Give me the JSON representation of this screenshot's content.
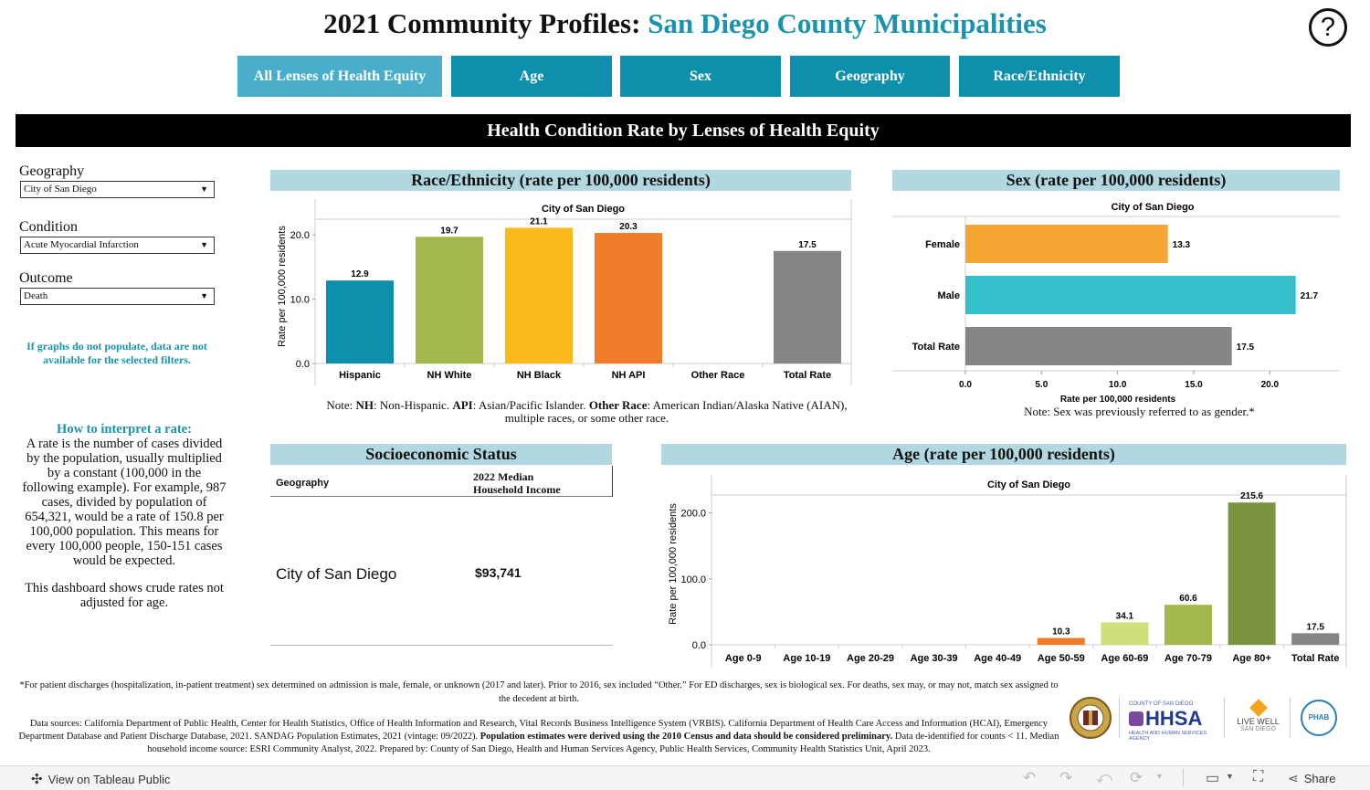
{
  "header": {
    "title_prefix": "2021 Community Profiles:",
    "title_accent": "San Diego County Municipalities",
    "help_label": "?"
  },
  "tabs": [
    {
      "label": "All Lenses of Health Equity",
      "active": true
    },
    {
      "label": "Age",
      "active": false
    },
    {
      "label": "Sex",
      "active": false
    },
    {
      "label": "Geography",
      "active": false
    },
    {
      "label": "Race/Ethnicity",
      "active": false
    }
  ],
  "banner": "Health Condition Rate by Lenses of Health Equity",
  "filters": {
    "geography": {
      "label": "Geography",
      "value": "City of San Diego"
    },
    "condition": {
      "label": "Condition",
      "value": "Acute Myocardial Infarction"
    },
    "outcome": {
      "label": "Outcome",
      "value": "Death"
    },
    "warning": "If graphs do not populate, data are not available for the selected filters."
  },
  "interpret": {
    "heading": "How to interpret a rate:",
    "body": "A rate is the number of cases divided by the population, usually multiplied by a constant (100,000 in the following example). For example, 987 cases, divided by population of 654,321, would be a rate of 150.8 per 100,000 population. This means for every 100,000 people, 150-151 cases would be expected.",
    "crude": "This dashboard shows crude rates not adjusted for age."
  },
  "race_panel": {
    "title": "Race/Ethnicity (rate per 100,000 residents)",
    "note_parts": {
      "p1": "Note: ",
      "b1": "NH",
      "p2": ": Non-Hispanic. ",
      "b2": "API",
      "p3": ": Asian/Pacific Islander. ",
      "b3": "Other Race",
      "p4": ": American Indian/Alaska Native (AIAN),",
      "line2": "multiple races, or some other race."
    }
  },
  "sex_panel": {
    "title": "Sex (rate per 100,000 residents)",
    "note": "Note: Sex was previously referred to as gender.*"
  },
  "ses_panel": {
    "title": "Socioeconomic Status",
    "col_geo": "Geography",
    "col_income_1": "2022 Median",
    "col_income_2": "Household Income",
    "row_geo": "City of San Diego",
    "row_income": "$93,741"
  },
  "age_panel": {
    "title": "Age (rate per 100,000 residents)"
  },
  "chart_data": [
    {
      "type": "bar",
      "title": "City of San Diego",
      "ylabel": "Rate per 100,000 residents",
      "ylim": [
        0,
        24
      ],
      "yticks": [
        "0.0",
        "10.0",
        "20.0"
      ],
      "categories": [
        "Hispanic",
        "NH White",
        "NH Black",
        "NH API",
        "Other Race",
        "Total Rate"
      ],
      "values": [
        12.9,
        19.7,
        21.1,
        20.3,
        null,
        17.5
      ],
      "labels": [
        "12.9",
        "19.7",
        "21.1",
        "20.3",
        "",
        "17.5"
      ],
      "colors": [
        "#0e8fab",
        "#a3b84a",
        "#fbb91a",
        "#f07b28",
        "#999999",
        "#858585"
      ]
    },
    {
      "type": "bar",
      "orientation": "horizontal",
      "title": "City of San Diego",
      "xlabel": "Rate per 100,000 residents",
      "xlim": [
        0,
        24
      ],
      "xticks": [
        "0.0",
        "5.0",
        "10.0",
        "15.0",
        "20.0"
      ],
      "categories": [
        "Female",
        "Male",
        "Total Rate"
      ],
      "values": [
        13.3,
        21.7,
        17.5
      ],
      "labels": [
        "13.3",
        "21.7",
        "17.5"
      ],
      "colors": [
        "#f5a533",
        "#35bfca",
        "#858585"
      ]
    },
    {
      "type": "bar",
      "title": "City of San Diego",
      "ylabel": "Rate per 100,000 residents",
      "ylim": [
        0,
        245
      ],
      "yticks": [
        "0.0",
        "100.0",
        "200.0"
      ],
      "categories": [
        "Age 0-9",
        "Age 10-19",
        "Age 20-29",
        "Age 30-39",
        "Age 40-49",
        "Age 50-59",
        "Age 60-69",
        "Age 70-79",
        "Age 80+",
        "Total Rate"
      ],
      "values": [
        null,
        null,
        null,
        null,
        null,
        10.3,
        34.1,
        60.6,
        215.6,
        17.5
      ],
      "labels": [
        "",
        "",
        "",
        "",
        "",
        "10.3",
        "34.1",
        "60.6",
        "215.6",
        "17.5"
      ],
      "colors": [
        "#999",
        "#999",
        "#999",
        "#999",
        "#999",
        "#f07b28",
        "#cde07a",
        "#a3b84a",
        "#7b9440",
        "#858585"
      ]
    }
  ],
  "footer": {
    "line1": "*For patient discharges (hospitalization, in-patient treatment) sex determined on admission is male, female, or unknown (2017 and later). Prior to 2016, sex included “Other.” For ED discharges, sex is biological sex. For deaths, sex may, or may not, match sex assigned to the decedent at birth.",
    "sources_a": "Data sources: California Department of Public Health, Center for Health Statistics, Office of Health Information and Research, Vital Records Business Intelligence System (VRBIS).  California Department of Health Care Access and Information (HCAI), Emergency Department Database and Patient Discharge Database, 2021. SANDAG Population Estimates, 2021 (vintage: 09/2022). ",
    "sources_bold": "Population estimates were derived using the 2010 Census and data should be considered preliminary.",
    "sources_b": " Data de-identified for counts < 11. Median household income source: ESRI Community Analyst, 2022. Prepared by: County of San Diego, Health and Human Services Agency, Public Health Services, Community Health Statistics Unit, April 2023."
  },
  "logos": {
    "hhsa_small": "COUNTY OF SAN DIEGO",
    "hhsa": "HHSA",
    "hhsa_sub": "HEALTH AND HUMAN SERVICES AGENCY",
    "livewell_1": "LIVE WELL",
    "livewell_2": "SAN DIEGO",
    "phab": "PHAB"
  },
  "toolbar": {
    "view_on": "View on Tableau Public",
    "share": "Share"
  }
}
